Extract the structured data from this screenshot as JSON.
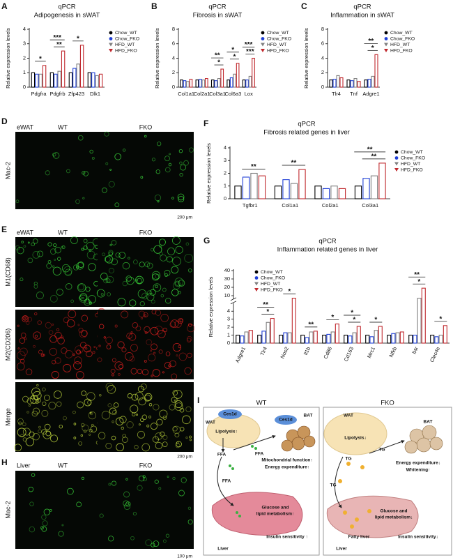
{
  "chart_data": [
    {
      "type": "bar",
      "panel": "A",
      "title": "qPCR",
      "subtitle": "Adipogenesis in sWAT",
      "ylabel": "Relative expression levels",
      "categories": [
        "Pdgfra",
        "Pdgfrb",
        "Zfp423",
        "Dlk1"
      ],
      "series": [
        {
          "name": "Chow_WT",
          "color": "#000000",
          "marker": "circle",
          "values": [
            1,
            1,
            1,
            1
          ]
        },
        {
          "name": "Chow_FKO",
          "color": "#1f3fd6",
          "marker": "circle",
          "values": [
            0.9,
            0.9,
            1.3,
            1.0
          ]
        },
        {
          "name": "HFD_WT",
          "color": "#808080",
          "marker": "triangle-down",
          "values": [
            0.9,
            1.1,
            1.6,
            0.8
          ]
        },
        {
          "name": "HFD_FKO",
          "color": "#c0282d",
          "marker": "triangle-down",
          "values": [
            1.5,
            2.5,
            2.9,
            0.9
          ]
        }
      ],
      "ylim": [
        0,
        4
      ],
      "yticks": [
        0,
        1,
        2,
        3,
        4
      ],
      "legend": "right",
      "annotations": [
        {
          "category": "Pdgfra",
          "text": "*"
        },
        {
          "category": "Pdgfrb",
          "text": "**"
        },
        {
          "category": "Pdgfrb",
          "text": "***"
        },
        {
          "category": "Zfp423",
          "text": "*"
        }
      ]
    },
    {
      "type": "bar",
      "panel": "B",
      "title": "qPCR",
      "subtitle": "Fibrosis in sWAT",
      "ylabel": "Relative expression levels",
      "categories": [
        "Col1a1",
        "Col2a1",
        "Col3a1",
        "Col6a3",
        "Lox"
      ],
      "series": [
        {
          "name": "Chow_WT",
          "color": "#000000",
          "marker": "circle",
          "values": [
            1,
            1,
            1,
            1,
            1
          ]
        },
        {
          "name": "Chow_FKO",
          "color": "#1f3fd6",
          "marker": "circle",
          "values": [
            0.9,
            1.1,
            0.9,
            1.3,
            1.0
          ]
        },
        {
          "name": "HFD_WT",
          "color": "#808080",
          "marker": "triangle-down",
          "values": [
            0.8,
            1.0,
            1.2,
            1.8,
            1.5
          ]
        },
        {
          "name": "HFD_FKO",
          "color": "#c0282d",
          "marker": "triangle-down",
          "values": [
            1.1,
            1.2,
            2.5,
            3.3,
            4.0
          ]
        }
      ],
      "ylim": [
        0,
        8
      ],
      "yticks": [
        0,
        2,
        4,
        6,
        8
      ],
      "legend": "right",
      "annotations": [
        {
          "category": "Col3a1",
          "text": "*"
        },
        {
          "category": "Col3a1",
          "text": "**"
        },
        {
          "category": "Col6a3",
          "text": "*"
        },
        {
          "category": "Col6a3",
          "text": "*"
        },
        {
          "category": "Lox",
          "text": "***"
        },
        {
          "category": "Lox",
          "text": "***"
        }
      ]
    },
    {
      "type": "bar",
      "panel": "C",
      "title": "qPCR",
      "subtitle": "Inflammation in sWAT",
      "ylabel": "Relative expression levels",
      "categories": [
        "Tlr4",
        "Tnf",
        "Adgre1"
      ],
      "series": [
        {
          "name": "Chow_WT",
          "color": "#000000",
          "marker": "circle",
          "values": [
            1,
            1,
            1
          ]
        },
        {
          "name": "Chow_FKO",
          "color": "#1f3fd6",
          "marker": "circle",
          "values": [
            1.1,
            0.9,
            1.1
          ]
        },
        {
          "name": "HFD_WT",
          "color": "#808080",
          "marker": "triangle-down",
          "values": [
            1.6,
            1.2,
            1.5
          ]
        },
        {
          "name": "HFD_FKO",
          "color": "#c0282d",
          "marker": "triangle-down",
          "values": [
            1.3,
            0.8,
            4.5
          ]
        }
      ],
      "ylim": [
        0,
        8
      ],
      "yticks": [
        0,
        2,
        4,
        6,
        8
      ],
      "legend": "right",
      "annotations": [
        {
          "category": "Adgre1",
          "text": "*"
        },
        {
          "category": "Adgre1",
          "text": "**"
        }
      ]
    },
    {
      "type": "bar",
      "panel": "F",
      "title": "qPCR",
      "subtitle": "Fibrosis related genes in liver",
      "ylabel": "Relative expression levels",
      "categories": [
        "Tgfbr1",
        "Col1a1",
        "Col2a1",
        "Col3a1"
      ],
      "series": [
        {
          "name": "Chow_WT",
          "color": "#000000",
          "marker": "circle",
          "values": [
            1,
            1,
            1,
            1
          ]
        },
        {
          "name": "Chow_FKO",
          "color": "#1f3fd6",
          "marker": "circle",
          "values": [
            1.7,
            1.5,
            0.8,
            1.6
          ]
        },
        {
          "name": "HFD_WT",
          "color": "#808080",
          "marker": "triangle-down",
          "values": [
            2.0,
            1.2,
            1.0,
            1.8
          ]
        },
        {
          "name": "HFD_FKO",
          "color": "#c0282d",
          "marker": "triangle-down",
          "values": [
            1.8,
            2.3,
            0.8,
            2.8
          ]
        }
      ],
      "ylim": [
        0,
        4
      ],
      "yticks": [
        0,
        1,
        2,
        3,
        4
      ],
      "legend": "right",
      "annotations": [
        {
          "category": "Tgfbr1",
          "text": "**"
        },
        {
          "category": "Col1a1",
          "text": "**"
        },
        {
          "category": "Col3a1",
          "text": "**"
        },
        {
          "category": "Col3a1",
          "text": "**"
        }
      ]
    },
    {
      "type": "bar",
      "panel": "G",
      "title": "qPCR",
      "subtitle": "Inflammation related genes in liver",
      "ylabel": "Relative expression levels",
      "categories": [
        "Adgre1",
        "Tlr4",
        "Nos2",
        "Il1b",
        "Cd86",
        "Cd163",
        "Mrc1",
        "Nfkb",
        "Il4r",
        "Clec4e"
      ],
      "series": [
        {
          "name": "Chow_WT",
          "color": "#000000",
          "marker": "circle",
          "values": [
            1,
            1,
            1,
            1,
            1,
            1,
            1,
            1,
            1,
            1
          ]
        },
        {
          "name": "Chow_FKO",
          "color": "#1f3fd6",
          "marker": "circle",
          "values": [
            0.9,
            1.5,
            1.3,
            0.7,
            1.1,
            0.9,
            0.8,
            1.2,
            1.0,
            0.8
          ]
        },
        {
          "name": "HFD_WT",
          "color": "#808080",
          "marker": "triangle-down",
          "values": [
            1.4,
            2.6,
            1.3,
            1.4,
            1.4,
            1.3,
            1.6,
            1.3,
            7,
            1.0
          ]
        },
        {
          "name": "HFD_FKO",
          "color": "#c0282d",
          "marker": "triangle-down",
          "values": [
            1.6,
            3.1,
            7,
            1.5,
            2.4,
            2.1,
            2.1,
            1.4,
            19,
            2.2
          ]
        }
      ],
      "ylim": [
        0,
        40
      ],
      "yticks": [
        0,
        1,
        2,
        3,
        4,
        10,
        20,
        30,
        40
      ],
      "ybreak": [
        5,
        6
      ],
      "legend": "upper left",
      "annotations": [
        {
          "category": "Tlr4",
          "text": "*"
        },
        {
          "category": "Tlr4",
          "text": "**"
        },
        {
          "category": "Nos2",
          "text": "*"
        },
        {
          "category": "Il1b",
          "text": "**"
        },
        {
          "category": "Cd86",
          "text": "*"
        },
        {
          "category": "Cd163",
          "text": "*"
        },
        {
          "category": "Cd163",
          "text": "*"
        },
        {
          "category": "Mrc1",
          "text": "*"
        },
        {
          "category": "Il4r",
          "text": "*"
        },
        {
          "category": "Il4r",
          "text": "**"
        },
        {
          "category": "Clec4e",
          "text": "*"
        }
      ]
    }
  ],
  "image_panels": [
    {
      "panel": "D",
      "tissue": "eWAT",
      "columns": [
        "WT",
        "FKO"
      ],
      "rows": [
        "Mac-2"
      ],
      "colors": [
        "#3cdc3c"
      ],
      "scale": "200 μm"
    },
    {
      "panel": "E",
      "tissue": "eWAT",
      "columns": [
        "WT",
        "FKO"
      ],
      "rows": [
        "M1(CD68)",
        "M2(CD206)",
        "Merge"
      ],
      "colors": [
        "#3cdc3c",
        "#e02020",
        "#c8e040"
      ],
      "scale": "200 μm"
    },
    {
      "panel": "H",
      "tissue": "Liver",
      "columns": [
        "WT",
        "FKO"
      ],
      "rows": [
        "Mac-2"
      ],
      "colors": [
        "#3cdc3c"
      ],
      "scale": "100 μm"
    }
  ],
  "diagram": {
    "panel": "I",
    "left": {
      "title": "WT",
      "labels": [
        "WAT",
        "Ces1d",
        "Lipolysis↑",
        "FFA",
        "Ces1d",
        "BAT",
        "FFA",
        "FFA",
        "Mitochondrial function↑",
        "Energy expenditure↑",
        "Glucose and",
        "lipid metabolism↑",
        "Liver",
        "Insulin sensitivity ↑"
      ]
    },
    "right": {
      "title": "FKO",
      "labels": [
        "WAT",
        "Lipolysis↓",
        "BAT",
        "TG",
        "TG",
        "TG",
        "Energy expenditure↓",
        "Whitening↑",
        "Glucose and",
        "lipid metabolism↓",
        "Fatty liver",
        "Liver",
        "Insulin sensitivity↓"
      ]
    }
  }
}
